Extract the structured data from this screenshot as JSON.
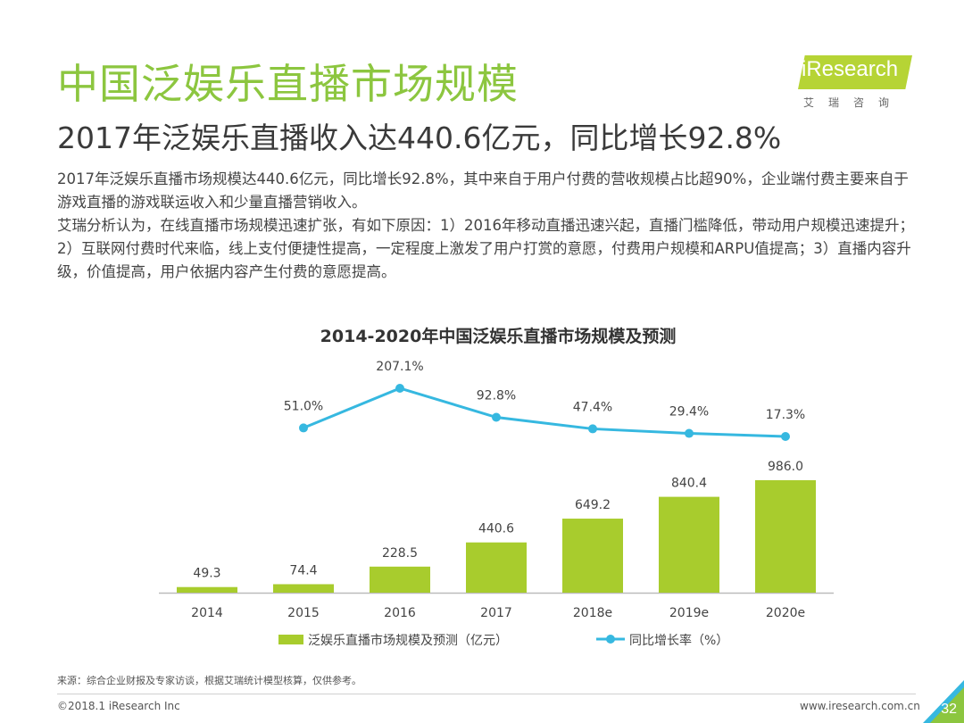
{
  "header": {
    "title": "中国泛娱乐直播市场规模",
    "subtitle": "2017年泛娱乐直播收入达440.6亿元，同比增长92.8%",
    "paragraph1": "2017年泛娱乐直播市场规模达440.6亿元，同比增长92.8%，其中来自于用户付费的营收规模占比超90%，企业端付费主要来自于游戏直播的游戏联运收入和少量直播营销收入。",
    "paragraph2": "艾瑞分析认为，在线直播市场规模迅速扩张，有如下原因：1）2016年移动直播迅速兴起，直播门槛降低，带动用户规模迅速提升；2）互联网付费时代来临，线上支付便捷性提高，一定程度上激发了用户打赏的意愿，付费用户规模和ARPU值提高；3）直播内容升级，价值提高，用户依据内容产生付费的意愿提高。"
  },
  "logo": {
    "text": "iResearch",
    "subtext": "艾瑞咨询"
  },
  "chart_data": {
    "type": "bar",
    "title": "2014-2020年中国泛娱乐直播市场规模及预测",
    "categories": [
      "2014",
      "2015",
      "2016",
      "2017",
      "2018e",
      "2019e",
      "2020e"
    ],
    "series": [
      {
        "name": "泛娱乐直播市场规模及预测（亿元）",
        "type": "bar",
        "values": [
          49.3,
          74.4,
          228.5,
          440.6,
          649.2,
          840.4,
          986.0
        ],
        "labels": [
          "49.3",
          "74.4",
          "228.5",
          "440.6",
          "649.2",
          "840.4",
          "986.0"
        ]
      },
      {
        "name": "同比增长率（%）",
        "type": "line",
        "values": [
          null,
          51.0,
          207.1,
          92.8,
          47.4,
          29.4,
          17.3
        ],
        "labels": [
          "",
          "51.0%",
          "207.1%",
          "92.8%",
          "47.4%",
          "29.4%",
          "17.3%"
        ]
      }
    ],
    "ylim": [
      0,
      1000
    ],
    "y2lim": [
      -140,
      220
    ],
    "colors": {
      "bar": "#a8cc2d",
      "line": "#36b8e0"
    },
    "legend_position": "bottom"
  },
  "footer": {
    "source": "来源：综合企业财报及专家访谈，根据艾瑞统计模型核算，仅供参考。",
    "copyright": "©2018.1 iResearch Inc",
    "website": "www.iresearch.com.cn",
    "page_number": "32"
  }
}
